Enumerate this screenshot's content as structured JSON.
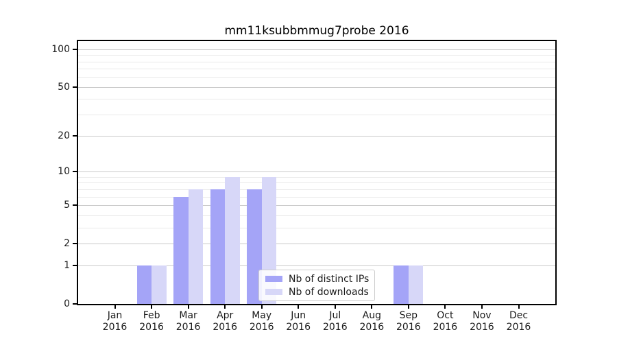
{
  "chart_data": {
    "type": "bar",
    "title": "mm11ksubbmmug7probe 2016",
    "categories": [
      "Jan 2016",
      "Feb 2016",
      "Mar 2016",
      "Apr 2016",
      "May 2016",
      "Jun 2016",
      "Jul 2016",
      "Aug 2016",
      "Sep 2016",
      "Oct 2016",
      "Nov 2016",
      "Dec 2016"
    ],
    "series": [
      {
        "name": "Nb of distinct IPs",
        "color": "#a4a4f7",
        "values": [
          0,
          1,
          6,
          7,
          7,
          0,
          0,
          0,
          1,
          0,
          0,
          0
        ]
      },
      {
        "name": "Nb of downloads",
        "color": "#d7d7f8",
        "values": [
          0,
          1,
          7,
          9,
          9,
          0,
          0,
          0,
          1,
          0,
          0,
          0
        ]
      }
    ],
    "xlabel": "",
    "ylabel": "",
    "yscale": "log1p",
    "ylim": [
      0,
      116
    ],
    "y_major_ticks": [
      0,
      1,
      2,
      5,
      10,
      20,
      50,
      100
    ],
    "y_minor_gridlines": [
      3,
      4,
      6,
      7,
      8,
      9,
      30,
      40,
      60,
      70,
      80,
      90
    ],
    "grid": true,
    "legend_position": "lower center"
  },
  "colors": {
    "background": "#ffffff",
    "spine": "#000000",
    "grid_major": "#c9c9c9",
    "grid_minor": "#e9e9e9",
    "text": "#1a1a1a",
    "legend_border": "#cccccc"
  }
}
